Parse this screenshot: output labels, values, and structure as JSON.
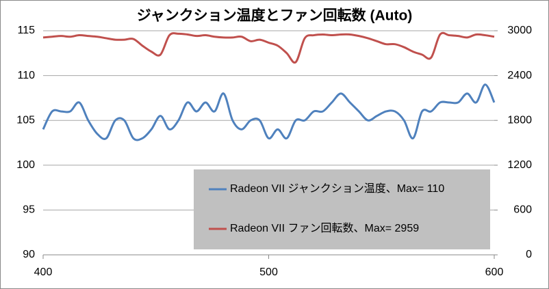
{
  "chart_data": {
    "type": "line",
    "title": "ジャンクション温度とファン回転数 (Auto)",
    "x": [
      400,
      404,
      408,
      412,
      416,
      420,
      424,
      428,
      432,
      436,
      440,
      444,
      448,
      452,
      456,
      460,
      464,
      468,
      472,
      476,
      480,
      484,
      488,
      492,
      496,
      500,
      504,
      508,
      512,
      516,
      520,
      524,
      528,
      532,
      536,
      540,
      544,
      548,
      552,
      556,
      560,
      564,
      568,
      572,
      576,
      580,
      584,
      588,
      592,
      596,
      600
    ],
    "xlim": [
      400,
      600
    ],
    "xticks": [
      400,
      500,
      600
    ],
    "ylim": [
      90,
      115
    ],
    "yticks": [
      90,
      95,
      100,
      105,
      110,
      115
    ],
    "y2lim": [
      0,
      3000
    ],
    "y2ticks": [
      0,
      600,
      1200,
      1800,
      2400,
      3000
    ],
    "grid": true,
    "legend": "lower right",
    "series": [
      {
        "name": "Radeon VII ジャンクション温度、Max= 110",
        "color": "#4f81bd",
        "values": [
          104,
          106,
          106,
          106,
          107,
          105,
          103.5,
          103,
          105,
          105,
          103,
          103,
          104,
          105.5,
          104,
          105,
          107,
          106,
          107,
          106,
          108,
          105,
          104,
          105,
          105,
          103,
          104,
          103,
          105,
          105,
          106,
          106,
          107,
          108,
          107,
          106,
          105,
          105.5,
          106,
          106,
          105,
          103,
          106,
          106,
          107,
          107,
          107,
          108,
          107,
          109,
          107
        ]
      },
      {
        "name": "Radeon VII ファン回転数、Max= 2959",
        "color": "#c0504d",
        "axis": "y2",
        "values": [
          2910,
          2920,
          2930,
          2920,
          2940,
          2930,
          2920,
          2900,
          2880,
          2880,
          2890,
          2800,
          2720,
          2680,
          2940,
          2960,
          2950,
          2930,
          2940,
          2920,
          2910,
          2910,
          2920,
          2860,
          2880,
          2840,
          2800,
          2700,
          2580,
          2900,
          2940,
          2950,
          2940,
          2950,
          2950,
          2930,
          2900,
          2860,
          2820,
          2820,
          2780,
          2720,
          2680,
          2640,
          2950,
          2940,
          2930,
          2910,
          2950,
          2940,
          2920
        ]
      }
    ]
  }
}
